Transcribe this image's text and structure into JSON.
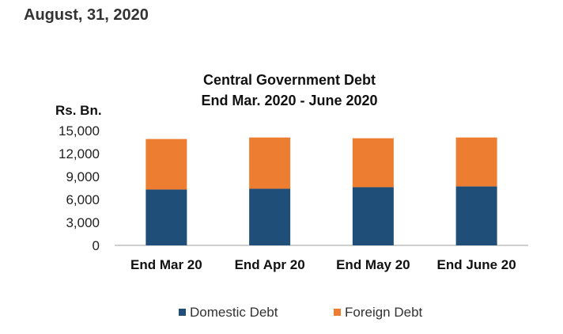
{
  "header": {
    "date": "August, 31, 2020"
  },
  "chart_data": {
    "type": "bar",
    "stacked": true,
    "title": "Central Government Debt",
    "subtitle": "End Mar. 2020 - June 2020",
    "ylabel": "Rs. Bn.",
    "xlabel": "",
    "ylim": [
      0,
      15000
    ],
    "yticks": [
      "15,000",
      "12,000",
      "9,000",
      "6,000",
      "3,000",
      "0"
    ],
    "ytick_values": [
      15000,
      12000,
      9000,
      6000,
      3000,
      0
    ],
    "categories": [
      "End Mar 20",
      "End Apr 20",
      "End May 20",
      "End June 20"
    ],
    "series": [
      {
        "name": "Domestic Debt",
        "color": "#1f4e79",
        "values": [
          7300,
          7400,
          7600,
          7700
        ]
      },
      {
        "name": "Foreign Debt",
        "color": "#ed7d31",
        "values": [
          6600,
          6700,
          6400,
          6400
        ]
      }
    ],
    "grid": false,
    "legend": "bottom"
  }
}
